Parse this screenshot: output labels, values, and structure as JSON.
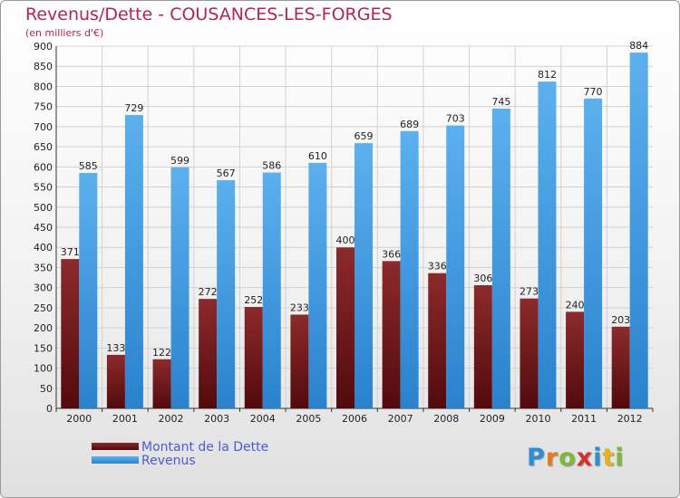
{
  "chart_data": {
    "type": "bar",
    "title": "Revenus/Dette - COUSANCES-LES-FORGES",
    "subtitle": "(en milliers d'€)",
    "categories": [
      "2000",
      "2001",
      "2002",
      "2003",
      "2004",
      "2005",
      "2006",
      "2007",
      "2008",
      "2009",
      "2010",
      "2011",
      "2012"
    ],
    "series": [
      {
        "name": "Montant de la Dette",
        "color": "#7a1f22",
        "values": [
          371,
          133,
          122,
          272,
          252,
          233,
          400,
          366,
          336,
          306,
          273,
          240,
          203
        ]
      },
      {
        "name": "Revenus",
        "color": "#4aa3e8",
        "values": [
          585,
          729,
          599,
          567,
          586,
          610,
          659,
          689,
          703,
          745,
          812,
          770,
          884
        ]
      }
    ],
    "ylim": [
      0,
      900
    ],
    "yticks": [
      0,
      50,
      100,
      150,
      200,
      250,
      300,
      350,
      400,
      450,
      500,
      550,
      600,
      650,
      700,
      750,
      800,
      850,
      900
    ],
    "grid": true,
    "legend": "bottom-left"
  },
  "logo": {
    "letters": [
      "P",
      "r",
      "o",
      "x",
      "i",
      "t",
      "i"
    ],
    "colors": [
      "#2c8fd6",
      "#e97a1e",
      "#7ab93a",
      "#d6322a",
      "#2c8fd6",
      "#e9b11e",
      "#7ab93a"
    ]
  }
}
